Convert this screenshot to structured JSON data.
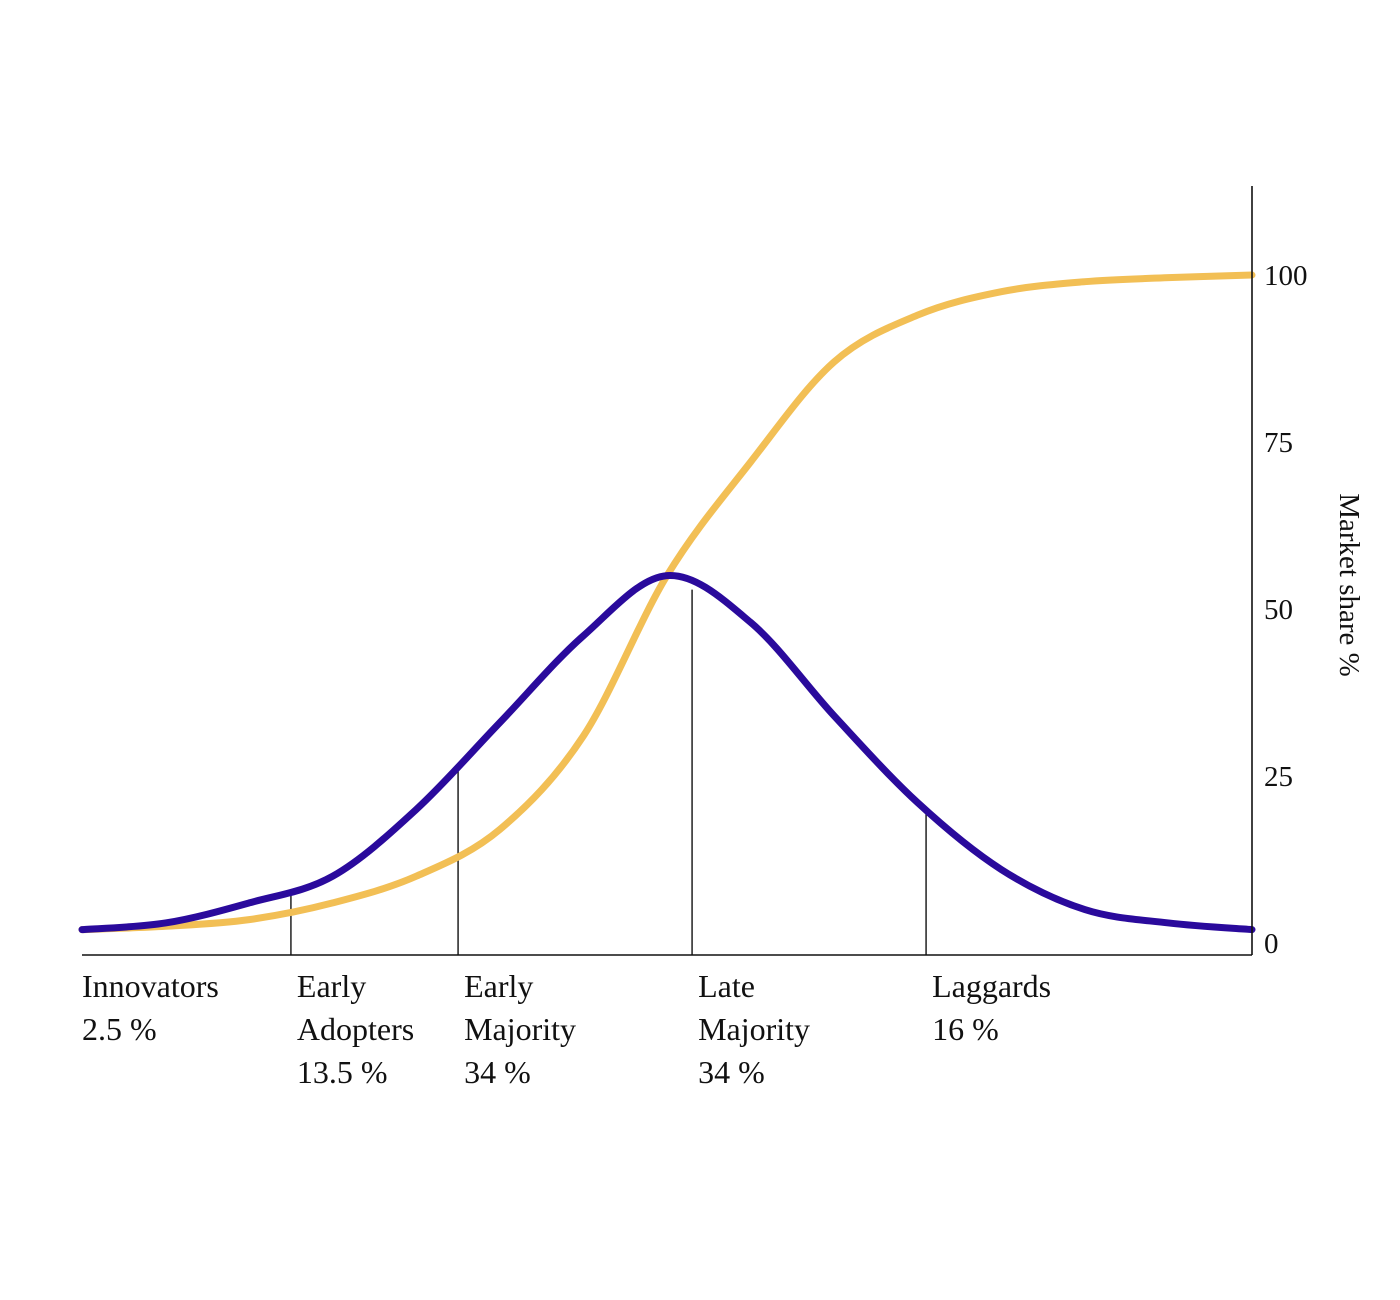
{
  "chart_data": {
    "type": "line",
    "title": "",
    "xlabel": "",
    "ylabel": "Market share %",
    "ylim": [
      0,
      100
    ],
    "y_ticks": [
      0,
      25,
      50,
      75,
      100
    ],
    "y_axis_side": "right",
    "grid": false,
    "x": [
      -3.5,
      -3.0,
      -2.5,
      -2.0,
      -1.5,
      -1.0,
      -0.5,
      0.0,
      0.5,
      1.0,
      1.5,
      2.0,
      2.5,
      3.0,
      3.5
    ],
    "series": [
      {
        "color": "#2a0a9c",
        "values": [
          2,
          3,
          6,
          10,
          20,
          33,
          46,
          55,
          48,
          34,
          21,
          11,
          5,
          3,
          2
        ]
      },
      {
        "color": "#f2bf55",
        "values": [
          2,
          2.5,
          3.5,
          6,
          10,
          17,
          31,
          55,
          72,
          87,
          94,
          97.5,
          99,
          99.6,
          100
        ]
      }
    ],
    "dividers": [
      -2.25,
      -1.25,
      0.15,
      1.55
    ],
    "segments": [
      {
        "lines": [
          "Innovators",
          "2.5 %"
        ]
      },
      {
        "lines": [
          "Early",
          "Adopters",
          "13.5 %"
        ]
      },
      {
        "lines": [
          "Early",
          "Majority",
          "34 %"
        ]
      },
      {
        "lines": [
          "Late",
          "Majority",
          "34 %"
        ]
      },
      {
        "lines": [
          "Laggards",
          "16 %"
        ]
      }
    ]
  }
}
